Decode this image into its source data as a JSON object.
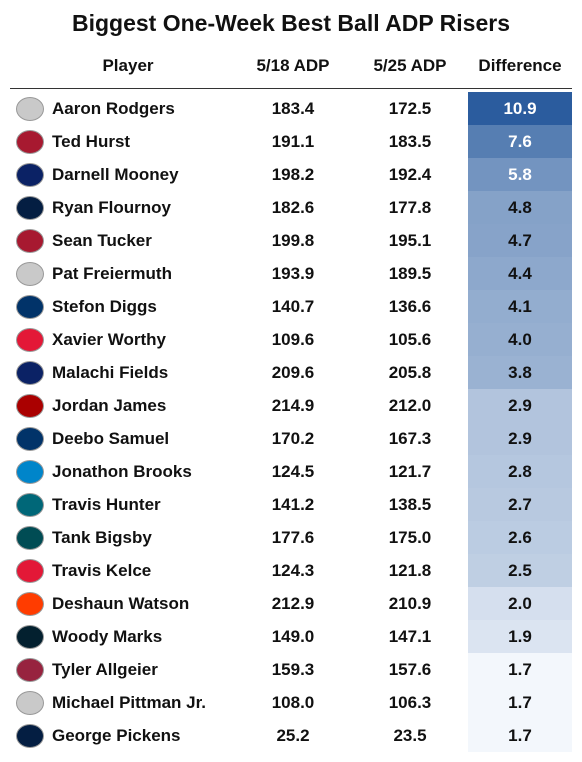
{
  "header": {
    "title": "Biggest One-Week Best Ball ADP Risers"
  },
  "table": {
    "columns": [
      "Player",
      "5/18 ADP",
      "5/25 ADP",
      "Difference"
    ],
    "rows": [
      [
        "Aaron Rodgers",
        "183.4",
        "172.5",
        "10.9"
      ],
      [
        "Ted Hurst",
        "191.1",
        "183.5",
        "7.6"
      ],
      [
        "Darnell Mooney",
        "198.2",
        "192.4",
        "5.8"
      ],
      [
        "Ryan Flournoy",
        "182.6",
        "177.8",
        "4.8"
      ],
      [
        "Sean Tucker",
        "199.8",
        "195.1",
        "4.7"
      ],
      [
        "Pat Freiermuth",
        "193.9",
        "189.5",
        "4.4"
      ],
      [
        "Stefon Diggs",
        "140.7",
        "136.6",
        "4.1"
      ],
      [
        "Xavier Worthy",
        "109.6",
        "105.6",
        "4.0"
      ],
      [
        "Malachi Fields",
        "209.6",
        "205.8",
        "3.8"
      ],
      [
        "Jordan James",
        "214.9",
        "212.0",
        "2.9"
      ],
      [
        "Deebo Samuel",
        "170.2",
        "167.3",
        "2.9"
      ],
      [
        "Jonathon Brooks",
        "124.5",
        "121.7",
        "2.8"
      ],
      [
        "Travis Hunter",
        "141.2",
        "138.5",
        "2.7"
      ],
      [
        "Tank Bigsby",
        "177.6",
        "175.0",
        "2.6"
      ],
      [
        "Travis Kelce",
        "124.3",
        "121.8",
        "2.5"
      ],
      [
        "Deshaun Watson",
        "212.9",
        "210.9",
        "2.0"
      ],
      [
        "Woody Marks",
        "149.0",
        "147.1",
        "1.9"
      ],
      [
        "Tyler Allgeier",
        "159.3",
        "157.6",
        "1.7"
      ],
      [
        "Michael Pittman Jr.",
        "108.0",
        "106.3",
        "1.7"
      ],
      [
        "George Pickens",
        "25.2",
        "23.5",
        "1.7"
      ]
    ]
  }
}
